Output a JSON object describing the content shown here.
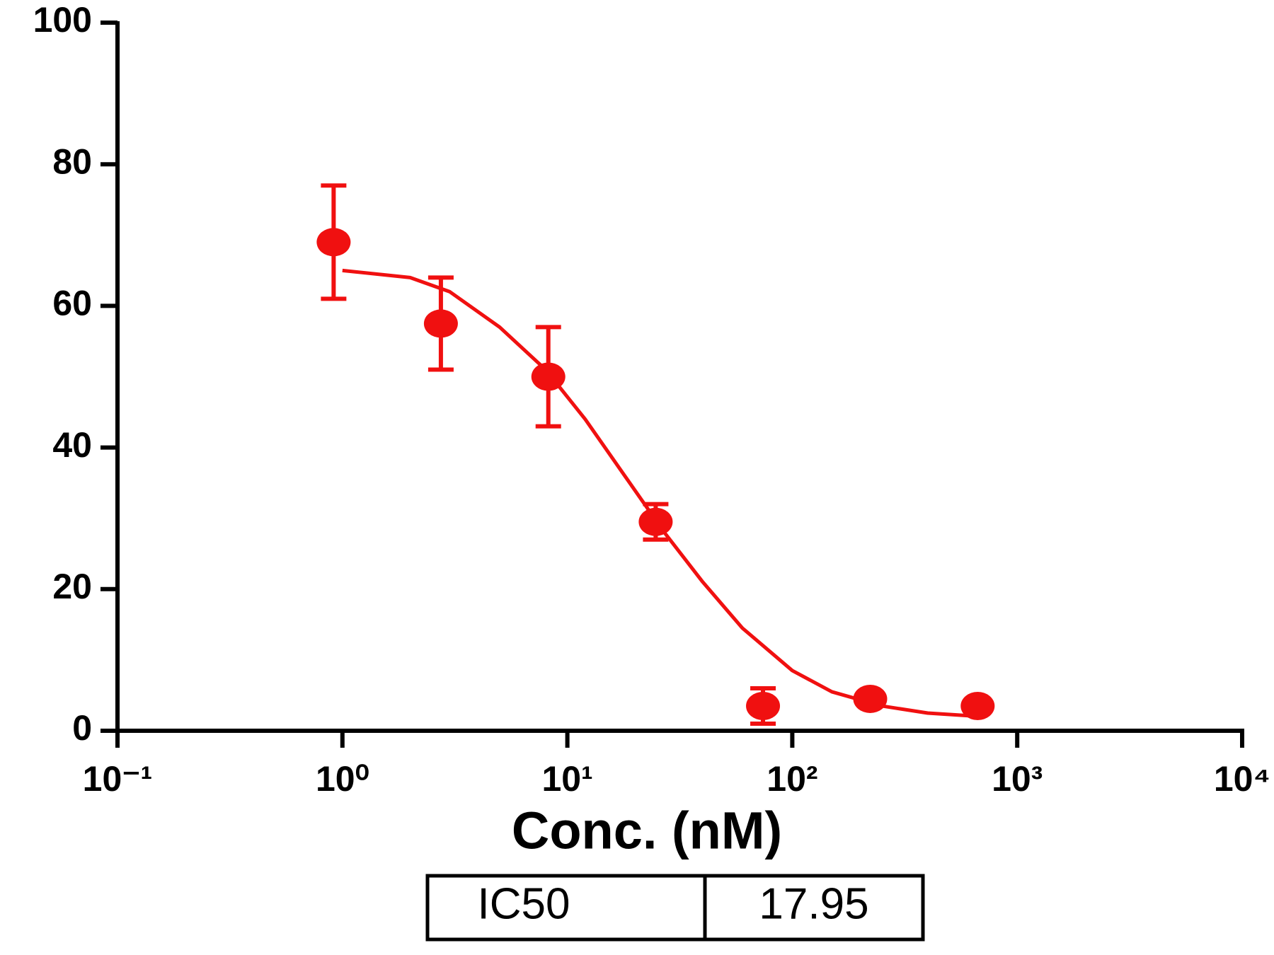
{
  "chart_data": {
    "type": "scatter",
    "xlabel": "Conc. (nM)",
    "xscale": "log",
    "xlim": [
      0.1,
      10000
    ],
    "xticks": [
      {
        "value": 0.1,
        "label": "10⁻¹"
      },
      {
        "value": 1,
        "label": "10⁰"
      },
      {
        "value": 10,
        "label": "10¹"
      },
      {
        "value": 100,
        "label": "10²"
      },
      {
        "value": 1000,
        "label": "10³"
      },
      {
        "value": 10000,
        "label": "10⁴"
      }
    ],
    "ylim": [
      0,
      100
    ],
    "yticks": [
      0,
      20,
      40,
      60,
      80,
      100
    ],
    "color": "#f01010",
    "x": [
      0.914,
      2.74,
      8.23,
      24.7,
      74.1,
      222,
      667
    ],
    "values": [
      69,
      57.5,
      50,
      29.5,
      3.5,
      4.5,
      3.5
    ],
    "errors": [
      8,
      6.5,
      7,
      2.5,
      2.5,
      0.5,
      0.5
    ],
    "fit": {
      "x": [
        1,
        2,
        3,
        5,
        8,
        12,
        18,
        27,
        40,
        60,
        100,
        150,
        250,
        400,
        700
      ],
      "values": [
        65,
        64,
        62,
        57,
        51,
        44,
        36,
        28,
        21,
        14.5,
        8.5,
        5.5,
        3.5,
        2.5,
        2
      ]
    },
    "table": {
      "label": "IC50",
      "value": 17.95
    }
  }
}
